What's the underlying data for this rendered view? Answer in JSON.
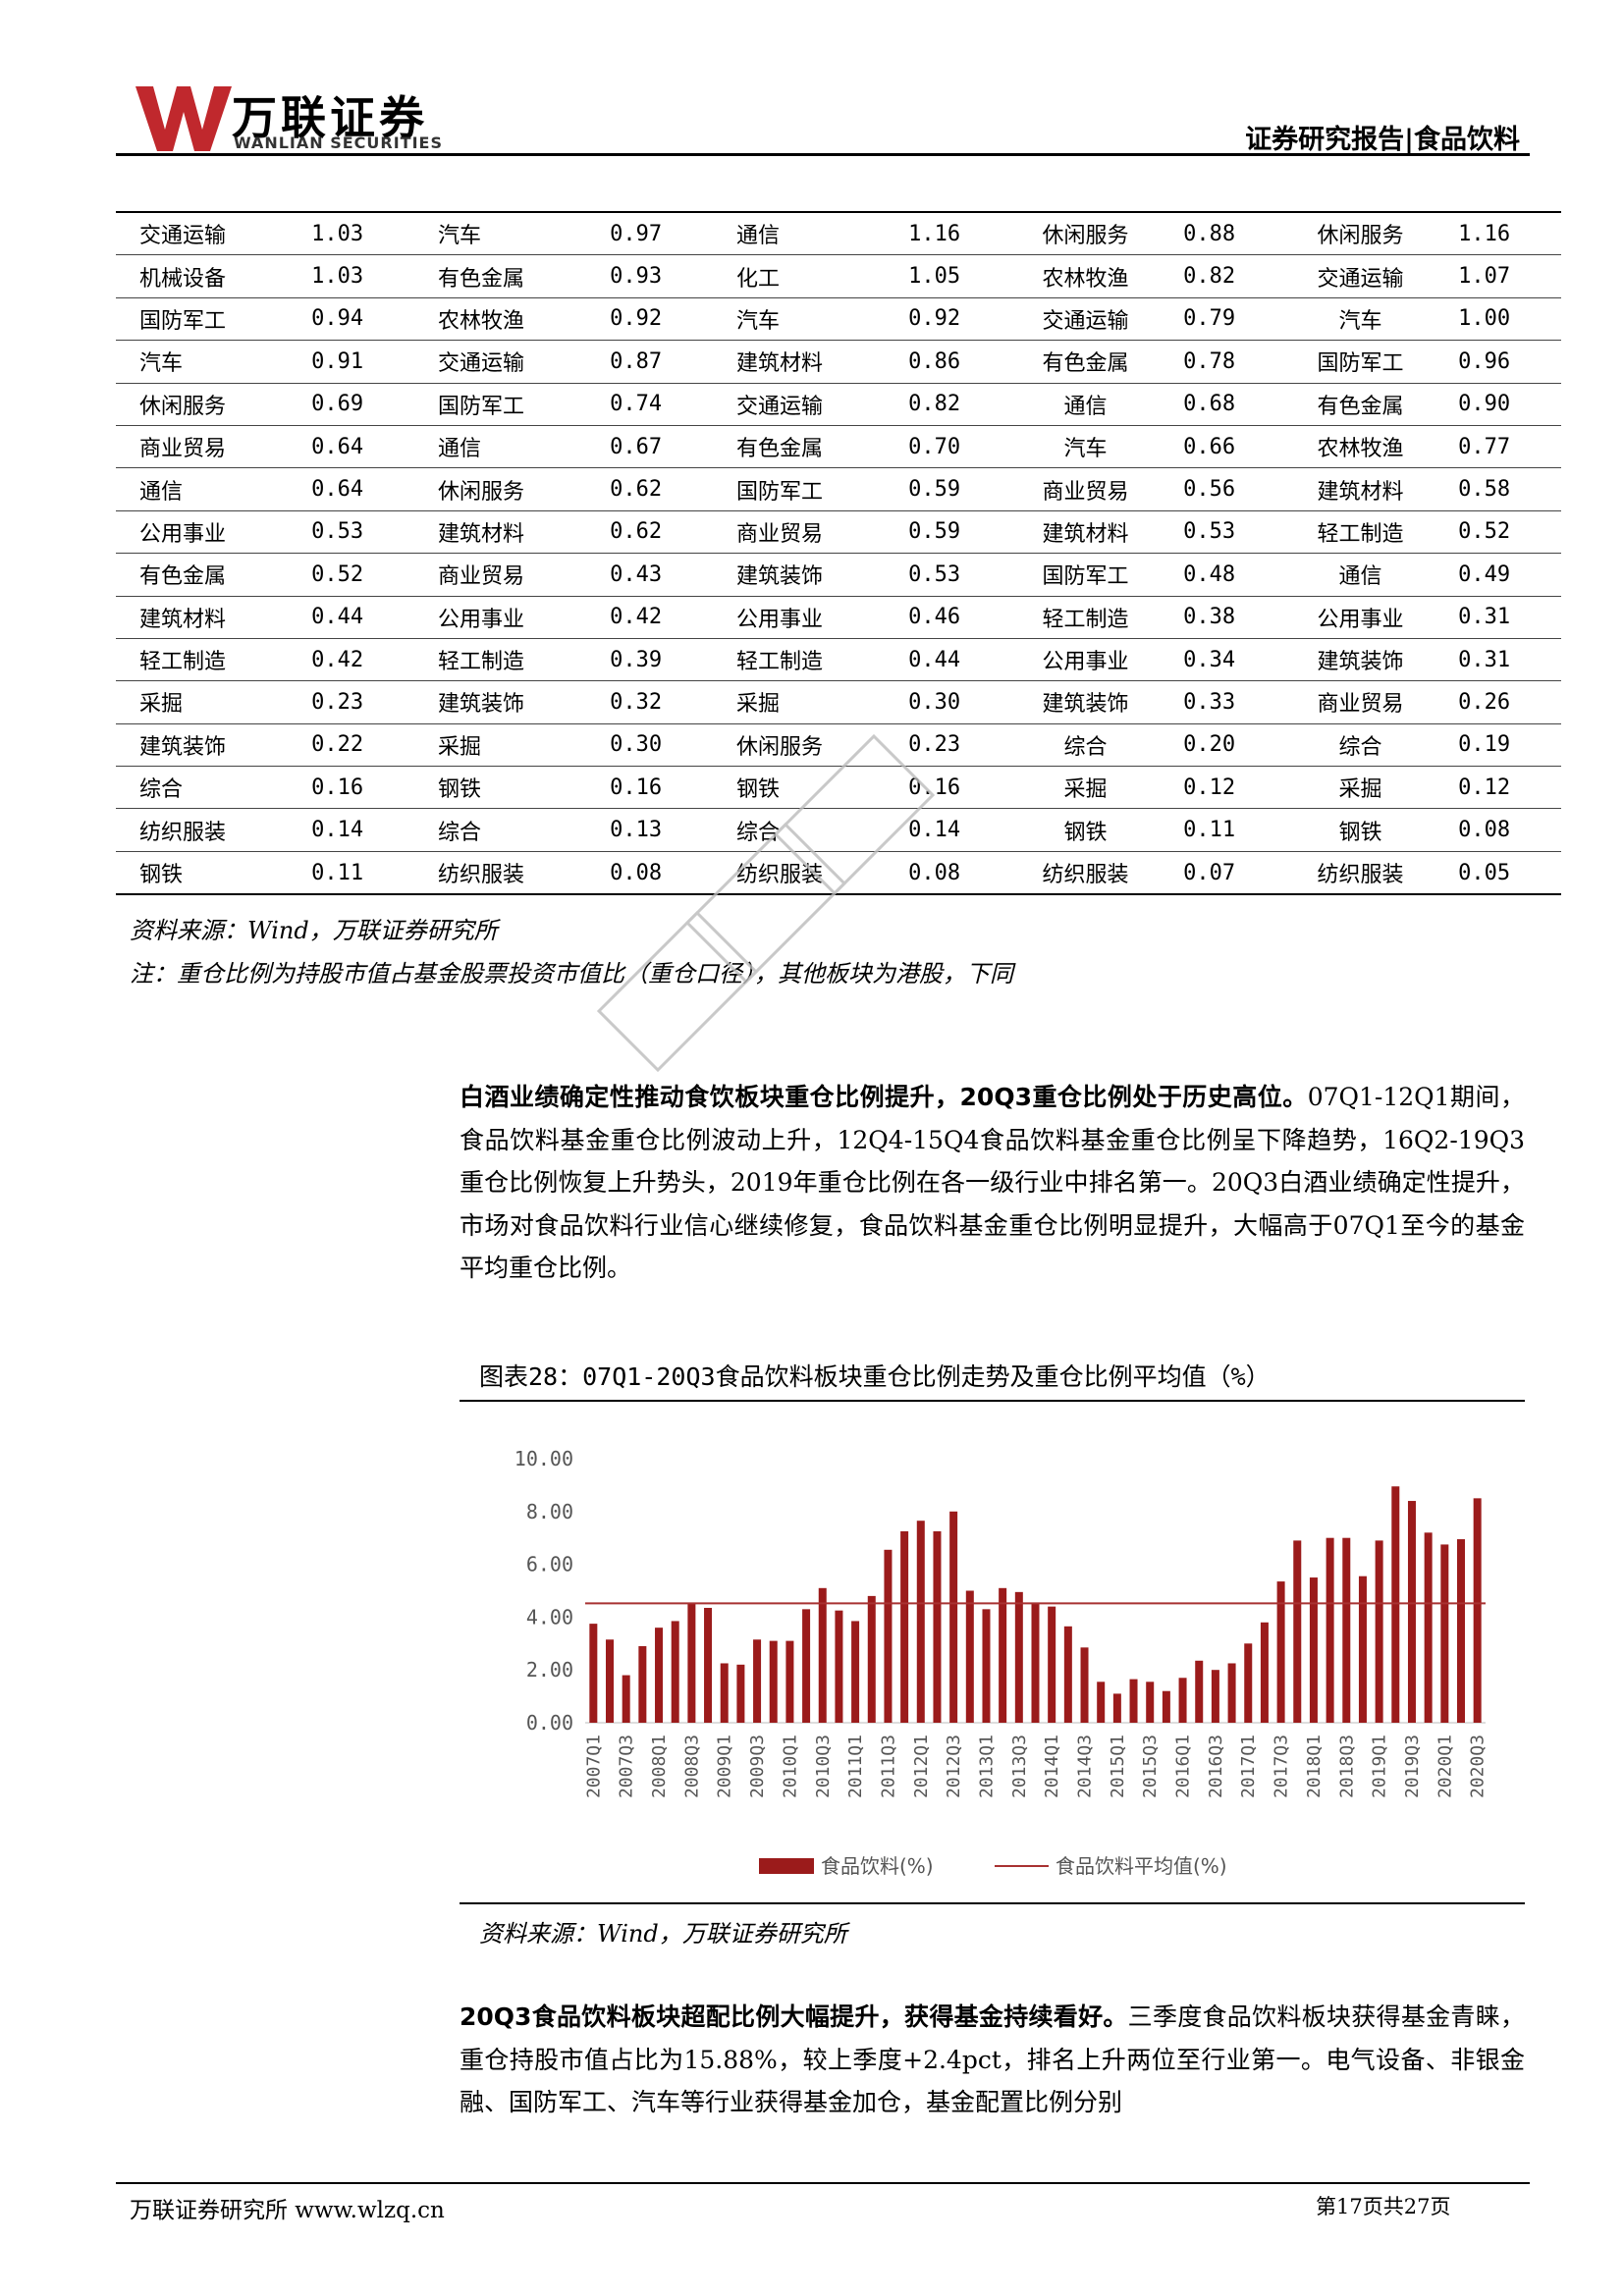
{
  "header": {
    "logo_cn": "万联证券",
    "logo_en": "WANLIAN SECURITIES",
    "report_type": "证券研究报告|食品饮料"
  },
  "table_rows": [
    [
      "交通运输",
      "1.03",
      "汽车",
      "0.97",
      "通信",
      "1.16",
      "休闲服务",
      "0.88",
      "休闲服务",
      "1.16"
    ],
    [
      "机械设备",
      "1.03",
      "有色金属",
      "0.93",
      "化工",
      "1.05",
      "农林牧渔",
      "0.82",
      "交通运输",
      "1.07"
    ],
    [
      "国防军工",
      "0.94",
      "农林牧渔",
      "0.92",
      "汽车",
      "0.92",
      "交通运输",
      "0.79",
      "汽车",
      "1.00"
    ],
    [
      "汽车",
      "0.91",
      "交通运输",
      "0.87",
      "建筑材料",
      "0.86",
      "有色金属",
      "0.78",
      "国防军工",
      "0.96"
    ],
    [
      "休闲服务",
      "0.69",
      "国防军工",
      "0.74",
      "交通运输",
      "0.82",
      "通信",
      "0.68",
      "有色金属",
      "0.90"
    ],
    [
      "商业贸易",
      "0.64",
      "通信",
      "0.67",
      "有色金属",
      "0.70",
      "汽车",
      "0.66",
      "农林牧渔",
      "0.77"
    ],
    [
      "通信",
      "0.64",
      "休闲服务",
      "0.62",
      "国防军工",
      "0.59",
      "商业贸易",
      "0.56",
      "建筑材料",
      "0.58"
    ],
    [
      "公用事业",
      "0.53",
      "建筑材料",
      "0.62",
      "商业贸易",
      "0.59",
      "建筑材料",
      "0.53",
      "轻工制造",
      "0.52"
    ],
    [
      "有色金属",
      "0.52",
      "商业贸易",
      "0.43",
      "建筑装饰",
      "0.53",
      "国防军工",
      "0.48",
      "通信",
      "0.49"
    ],
    [
      "建筑材料",
      "0.44",
      "公用事业",
      "0.42",
      "公用事业",
      "0.46",
      "轻工制造",
      "0.38",
      "公用事业",
      "0.31"
    ],
    [
      "轻工制造",
      "0.42",
      "轻工制造",
      "0.39",
      "轻工制造",
      "0.44",
      "公用事业",
      "0.34",
      "建筑装饰",
      "0.31"
    ],
    [
      "采掘",
      "0.23",
      "建筑装饰",
      "0.32",
      "采掘",
      "0.30",
      "建筑装饰",
      "0.33",
      "商业贸易",
      "0.26"
    ],
    [
      "建筑装饰",
      "0.22",
      "采掘",
      "0.30",
      "休闲服务",
      "0.23",
      "综合",
      "0.20",
      "综合",
      "0.19"
    ],
    [
      "综合",
      "0.16",
      "钢铁",
      "0.16",
      "钢铁",
      "0.16",
      "采掘",
      "0.12",
      "采掘",
      "0.12"
    ],
    [
      "纺织服装",
      "0.14",
      "综合",
      "0.13",
      "综合",
      "0.14",
      "钢铁",
      "0.11",
      "钢铁",
      "0.08"
    ],
    [
      "钢铁",
      "0.11",
      "纺织服装",
      "0.08",
      "纺织服装",
      "0.08",
      "纺织服装",
      "0.07",
      "纺织服装",
      "0.05"
    ]
  ],
  "table_source": "资料来源：Wind，万联证券研究所",
  "table_note": "注：重仓比例为持股市值占基金股票投资市值比（重仓口径），其他板块为港股，下同",
  "para1": {
    "bold": "白酒业绩确定性推动食饮板块重仓比例提升，20Q3重仓比例处于历史高位。",
    "text": "07Q1-12Q1期间，食品饮料基金重仓比例波动上升，12Q4-15Q4食品饮料基金重仓比例呈下降趋势，16Q2-19Q3重仓比例恢复上升势头，2019年重仓比例在各一级行业中排名第一。20Q3白酒业绩确定性提升，市场对食品饮料行业信心继续修复，食品饮料基金重仓比例明显提升，大幅高于07Q1至今的基金平均重仓比例。"
  },
  "chart_title": "图表28：07Q1-20Q3食品饮料板块重仓比例走势及重仓比例平均值（%）",
  "chart_source": "资料来源：Wind，万联证券研究所",
  "chart_data": {
    "type": "bar",
    "title": "图表28：07Q1-20Q3食品饮料板块重仓比例走势及重仓比例平均值（%）",
    "ylim": [
      0,
      10
    ],
    "yticks": [
      "0.00",
      "2.00",
      "4.00",
      "6.00",
      "8.00",
      "10.00"
    ],
    "grid": false,
    "legend_position": "bottom",
    "xtick_labels": [
      "2007Q1",
      "2007Q3",
      "2008Q1",
      "2008Q3",
      "2009Q1",
      "2009Q3",
      "2010Q1",
      "2010Q3",
      "2011Q1",
      "2011Q3",
      "2012Q1",
      "2012Q3",
      "2013Q1",
      "2013Q3",
      "2014Q1",
      "2014Q3",
      "2015Q1",
      "2015Q3",
      "2016Q1",
      "2016Q3",
      "2017Q1",
      "2017Q3",
      "2018Q1",
      "2018Q3",
      "2019Q1",
      "2019Q3",
      "2020Q1",
      "2020Q3"
    ],
    "categories": [
      "2007Q1",
      "2007Q2",
      "2007Q3",
      "2007Q4",
      "2008Q1",
      "2008Q2",
      "2008Q3",
      "2008Q4",
      "2009Q1",
      "2009Q2",
      "2009Q3",
      "2009Q4",
      "2010Q1",
      "2010Q2",
      "2010Q3",
      "2010Q4",
      "2011Q1",
      "2011Q2",
      "2011Q3",
      "2011Q4",
      "2012Q1",
      "2012Q2",
      "2012Q3",
      "2012Q4",
      "2013Q1",
      "2013Q2",
      "2013Q3",
      "2013Q4",
      "2014Q1",
      "2014Q2",
      "2014Q3",
      "2014Q4",
      "2015Q1",
      "2015Q2",
      "2015Q3",
      "2015Q4",
      "2016Q1",
      "2016Q2",
      "2016Q3",
      "2016Q4",
      "2017Q1",
      "2017Q2",
      "2017Q3",
      "2017Q4",
      "2018Q1",
      "2018Q2",
      "2018Q3",
      "2018Q4",
      "2019Q1",
      "2019Q2",
      "2019Q3",
      "2019Q4",
      "2020Q1",
      "2020Q2",
      "2020Q3"
    ],
    "series": [
      {
        "name": "食品饮料(%)",
        "color": "#9b1b1b",
        "values": [
          3.75,
          3.15,
          1.8,
          2.9,
          3.6,
          3.85,
          4.5,
          4.35,
          2.25,
          2.2,
          3.15,
          3.1,
          3.1,
          4.3,
          5.1,
          4.25,
          3.85,
          4.8,
          6.55,
          7.25,
          7.65,
          7.25,
          8.0,
          5.0,
          4.3,
          5.1,
          4.95,
          4.5,
          4.4,
          3.65,
          2.85,
          1.55,
          1.1,
          1.65,
          1.55,
          1.2,
          1.7,
          2.35,
          2.0,
          2.25,
          3.0,
          3.8,
          5.35,
          6.9,
          5.5,
          7.0,
          7.0,
          5.55,
          6.9,
          8.95,
          8.4,
          7.2,
          6.75,
          6.95,
          8.5
        ]
      },
      {
        "name": "食品饮料平均值(%)",
        "color": "#a83232",
        "type": "line",
        "value": 4.52
      }
    ]
  },
  "para2": {
    "bold": "20Q3食品饮料板块超配比例大幅提升，获得基金持续看好。",
    "text": "三季度食品饮料板块获得基金青睐，重仓持股市值占比为15.88%，较上季度+2.4pct，排名上升两位至行业第一。电气设备、非银金融、国防军工、汽车等行业获得基金加仓，基金配置比例分别"
  },
  "footer": {
    "left": "万联证券研究所 www.wlzq.cn",
    "right": "第17页共27页"
  }
}
